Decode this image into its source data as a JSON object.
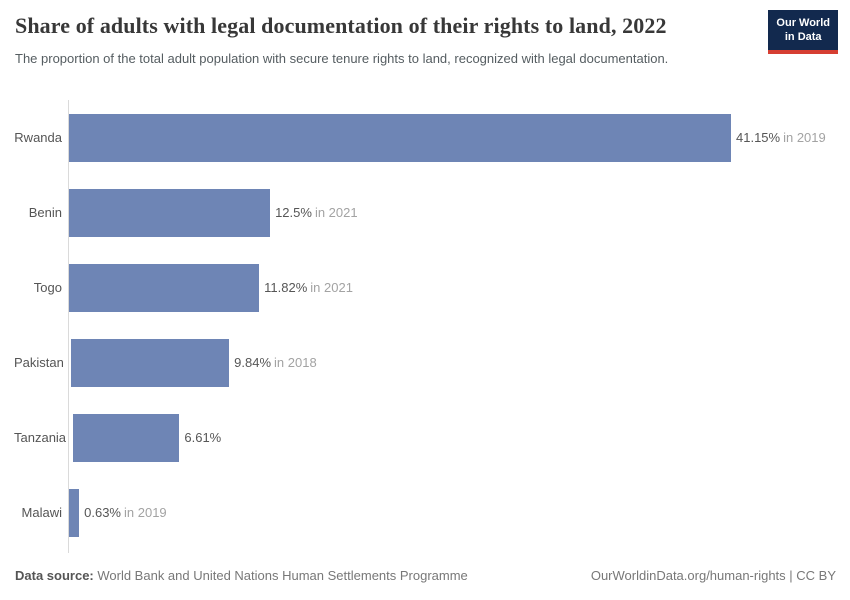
{
  "header": {
    "title": "Share of adults with legal documentation of their rights to land, 2022",
    "subtitle": "The proportion of the total adult population with secure tenure rights to land, recognized with legal documentation.",
    "logo_line1": "Our World",
    "logo_line2": "in Data"
  },
  "chart_data": {
    "type": "bar",
    "orientation": "horizontal",
    "title": "Share of adults with legal documentation of their rights to land, 2022",
    "categories": [
      "Rwanda",
      "Benin",
      "Togo",
      "Pakistan",
      "Tanzania",
      "Malawi"
    ],
    "values": [
      41.15,
      12.5,
      11.82,
      9.84,
      6.61,
      0.63
    ],
    "value_labels": [
      "41.15%",
      "12.5%",
      "11.82%",
      "9.84%",
      "6.61%",
      "0.63%"
    ],
    "year_labels": [
      "in 2019",
      "in 2021",
      "in 2021",
      "in 2018",
      "",
      "in 2019"
    ],
    "xlim": [
      0,
      41.15
    ],
    "bar_color": "#6e85b5",
    "grid": false,
    "legend": "none"
  },
  "footer": {
    "source_label": "Data source:",
    "source_text": " World Bank and United Nations Human Settlements Programme",
    "rights": "OurWorldinData.org/human-rights | CC BY"
  },
  "colors": {
    "bar": "#6e85b5",
    "logo_navy": "#12294e",
    "logo_red": "#d63e32",
    "axis_line": "#dadada",
    "title_text": "#383838",
    "muted_text": "#a3a3a3"
  }
}
